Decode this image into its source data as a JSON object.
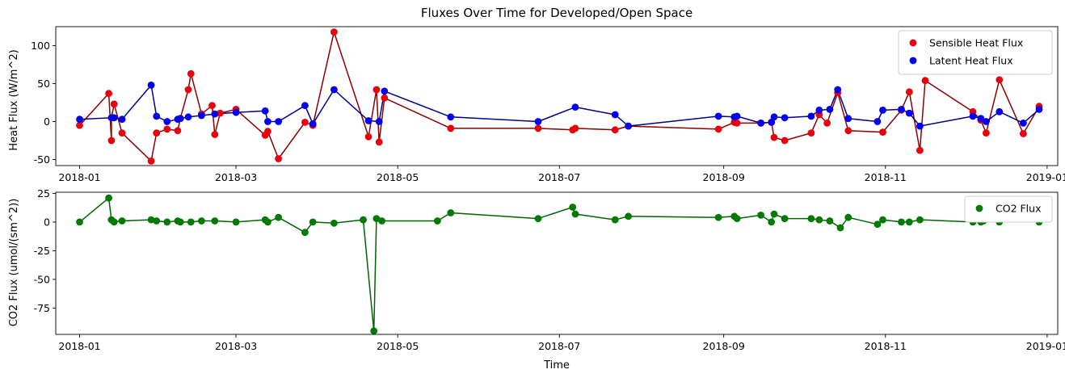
{
  "chart_data": [
    {
      "type": "scatter",
      "title": "Fluxes Over Time for Developed/Open Space",
      "xlabel": "",
      "ylabel": "Heat Flux (W/m^2)",
      "x_type": "date",
      "xlim": [
        "2017-12-23",
        "2019-01-05"
      ],
      "ylim": [
        -58,
        125
      ],
      "xticks": [
        "2018-01",
        "2018-03",
        "2018-05",
        "2018-07",
        "2018-09",
        "2018-11",
        "2019-01"
      ],
      "yticks": [
        -50,
        0,
        50,
        100
      ],
      "grid": false,
      "legend": "top-right",
      "series": [
        {
          "name": "Sensible Heat Flux",
          "marker_color": "#e8000b",
          "line_color": "#8b0000",
          "points": [
            {
              "x": "2018-01-01",
              "y": -5
            },
            {
              "x": "2018-01-12",
              "y": 37
            },
            {
              "x": "2018-01-13",
              "y": -25
            },
            {
              "x": "2018-01-13",
              "y": 5
            },
            {
              "x": "2018-01-14",
              "y": 23
            },
            {
              "x": "2018-01-17",
              "y": -15
            },
            {
              "x": "2018-01-28",
              "y": -52
            },
            {
              "x": "2018-01-30",
              "y": -15
            },
            {
              "x": "2018-02-03",
              "y": -10
            },
            {
              "x": "2018-02-07",
              "y": -12
            },
            {
              "x": "2018-02-08",
              "y": 4
            },
            {
              "x": "2018-02-11",
              "y": 42
            },
            {
              "x": "2018-02-12",
              "y": 63
            },
            {
              "x": "2018-02-16",
              "y": 10
            },
            {
              "x": "2018-02-20",
              "y": 21
            },
            {
              "x": "2018-02-21",
              "y": -17
            },
            {
              "x": "2018-02-23",
              "y": 11
            },
            {
              "x": "2018-03-01",
              "y": 16
            },
            {
              "x": "2018-03-12",
              "y": -18
            },
            {
              "x": "2018-03-13",
              "y": -13
            },
            {
              "x": "2018-03-17",
              "y": -49
            },
            {
              "x": "2018-03-27",
              "y": -1
            },
            {
              "x": "2018-03-30",
              "y": -5
            },
            {
              "x": "2018-04-07",
              "y": 118
            },
            {
              "x": "2018-04-20",
              "y": -20
            },
            {
              "x": "2018-04-23",
              "y": 42
            },
            {
              "x": "2018-04-24",
              "y": -27
            },
            {
              "x": "2018-04-26",
              "y": 31
            },
            {
              "x": "2018-05-21",
              "y": -9
            },
            {
              "x": "2018-06-23",
              "y": -9
            },
            {
              "x": "2018-07-06",
              "y": -11
            },
            {
              "x": "2018-07-07",
              "y": -9
            },
            {
              "x": "2018-07-22",
              "y": -11
            },
            {
              "x": "2018-07-27",
              "y": -6
            },
            {
              "x": "2018-08-30",
              "y": -10
            },
            {
              "x": "2018-09-05",
              "y": -1
            },
            {
              "x": "2018-09-06",
              "y": -2
            },
            {
              "x": "2018-09-15",
              "y": -2
            },
            {
              "x": "2018-09-19",
              "y": -1
            },
            {
              "x": "2018-09-20",
              "y": -21
            },
            {
              "x": "2018-09-24",
              "y": -25
            },
            {
              "x": "2018-10-04",
              "y": -15
            },
            {
              "x": "2018-10-07",
              "y": 9
            },
            {
              "x": "2018-10-10",
              "y": -2
            },
            {
              "x": "2018-10-14",
              "y": 38
            },
            {
              "x": "2018-10-18",
              "y": -12
            },
            {
              "x": "2018-10-31",
              "y": -14
            },
            {
              "x": "2018-11-07",
              "y": 15
            },
            {
              "x": "2018-11-10",
              "y": 39
            },
            {
              "x": "2018-11-14",
              "y": -38
            },
            {
              "x": "2018-11-16",
              "y": 54
            },
            {
              "x": "2018-12-04",
              "y": 13
            },
            {
              "x": "2018-12-07",
              "y": 2
            },
            {
              "x": "2018-12-09",
              "y": -15
            },
            {
              "x": "2018-12-14",
              "y": 55
            },
            {
              "x": "2018-12-23",
              "y": -16
            },
            {
              "x": "2018-12-29",
              "y": 20
            }
          ]
        },
        {
          "name": "Latent Heat Flux",
          "marker_color": "#0000ee",
          "line_color": "#00008b",
          "points": [
            {
              "x": "2018-01-01",
              "y": 3
            },
            {
              "x": "2018-01-13",
              "y": 5
            },
            {
              "x": "2018-01-14",
              "y": 5
            },
            {
              "x": "2018-01-17",
              "y": 3
            },
            {
              "x": "2018-01-28",
              "y": 48
            },
            {
              "x": "2018-01-30",
              "y": 7
            },
            {
              "x": "2018-02-03",
              "y": 0
            },
            {
              "x": "2018-02-07",
              "y": 3
            },
            {
              "x": "2018-02-08",
              "y": 4
            },
            {
              "x": "2018-02-11",
              "y": 6
            },
            {
              "x": "2018-02-16",
              "y": 8
            },
            {
              "x": "2018-02-21",
              "y": 10
            },
            {
              "x": "2018-03-01",
              "y": 12
            },
            {
              "x": "2018-03-12",
              "y": 14
            },
            {
              "x": "2018-03-13",
              "y": 0
            },
            {
              "x": "2018-03-17",
              "y": 0
            },
            {
              "x": "2018-03-27",
              "y": 21
            },
            {
              "x": "2018-03-30",
              "y": -3
            },
            {
              "x": "2018-04-07",
              "y": 42
            },
            {
              "x": "2018-04-20",
              "y": 1
            },
            {
              "x": "2018-04-24",
              "y": 0
            },
            {
              "x": "2018-04-26",
              "y": 40
            },
            {
              "x": "2018-05-21",
              "y": 6
            },
            {
              "x": "2018-06-23",
              "y": 0
            },
            {
              "x": "2018-07-07",
              "y": 19
            },
            {
              "x": "2018-07-22",
              "y": 9
            },
            {
              "x": "2018-07-27",
              "y": -6
            },
            {
              "x": "2018-08-30",
              "y": 7
            },
            {
              "x": "2018-09-05",
              "y": 6
            },
            {
              "x": "2018-09-06",
              "y": 7
            },
            {
              "x": "2018-09-15",
              "y": -2
            },
            {
              "x": "2018-09-19",
              "y": -1
            },
            {
              "x": "2018-09-20",
              "y": 6
            },
            {
              "x": "2018-09-24",
              "y": 5
            },
            {
              "x": "2018-10-04",
              "y": 7
            },
            {
              "x": "2018-10-07",
              "y": 15
            },
            {
              "x": "2018-10-11",
              "y": 16
            },
            {
              "x": "2018-10-14",
              "y": 42
            },
            {
              "x": "2018-10-18",
              "y": 4
            },
            {
              "x": "2018-10-29",
              "y": 0
            },
            {
              "x": "2018-10-31",
              "y": 15
            },
            {
              "x": "2018-11-07",
              "y": 16
            },
            {
              "x": "2018-11-10",
              "y": 11
            },
            {
              "x": "2018-11-14",
              "y": -6
            },
            {
              "x": "2018-12-04",
              "y": 7
            },
            {
              "x": "2018-12-07",
              "y": 4
            },
            {
              "x": "2018-12-09",
              "y": 0
            },
            {
              "x": "2018-12-14",
              "y": 13
            },
            {
              "x": "2018-12-23",
              "y": -2
            },
            {
              "x": "2018-12-29",
              "y": 16
            }
          ]
        }
      ]
    },
    {
      "type": "scatter",
      "title": "",
      "xlabel": "Time",
      "ylabel": "CO2 Flux (umol/(sm^2))",
      "x_type": "date",
      "xlim": [
        "2017-12-23",
        "2019-01-05"
      ],
      "ylim": [
        -98,
        26
      ],
      "xticks": [
        "2018-01",
        "2018-03",
        "2018-05",
        "2018-07",
        "2018-09",
        "2018-11",
        "2019-01"
      ],
      "yticks": [
        -75,
        -50,
        -25,
        0,
        25
      ],
      "grid": false,
      "legend": "top-right",
      "series": [
        {
          "name": "CO2 Flux",
          "marker_color": "#007a00",
          "line_color": "#006400",
          "points": [
            {
              "x": "2018-01-01",
              "y": 0
            },
            {
              "x": "2018-01-12",
              "y": 21
            },
            {
              "x": "2018-01-13",
              "y": 2
            },
            {
              "x": "2018-01-14",
              "y": 0
            },
            {
              "x": "2018-01-17",
              "y": 1
            },
            {
              "x": "2018-01-28",
              "y": 2
            },
            {
              "x": "2018-01-30",
              "y": 1
            },
            {
              "x": "2018-02-03",
              "y": 0
            },
            {
              "x": "2018-02-07",
              "y": 1
            },
            {
              "x": "2018-02-08",
              "y": 0
            },
            {
              "x": "2018-02-12",
              "y": 0
            },
            {
              "x": "2018-02-16",
              "y": 1
            },
            {
              "x": "2018-02-21",
              "y": 1
            },
            {
              "x": "2018-03-01",
              "y": 0
            },
            {
              "x": "2018-03-12",
              "y": 2
            },
            {
              "x": "2018-03-13",
              "y": 0
            },
            {
              "x": "2018-03-17",
              "y": 4
            },
            {
              "x": "2018-03-27",
              "y": -9
            },
            {
              "x": "2018-03-30",
              "y": 0
            },
            {
              "x": "2018-04-07",
              "y": -1
            },
            {
              "x": "2018-04-18",
              "y": 2
            },
            {
              "x": "2018-04-22",
              "y": -95
            },
            {
              "x": "2018-04-23",
              "y": 3
            },
            {
              "x": "2018-04-25",
              "y": 1
            },
            {
              "x": "2018-05-16",
              "y": 1
            },
            {
              "x": "2018-05-21",
              "y": 8
            },
            {
              "x": "2018-06-23",
              "y": 3
            },
            {
              "x": "2018-07-06",
              "y": 13
            },
            {
              "x": "2018-07-07",
              "y": 7
            },
            {
              "x": "2018-07-22",
              "y": 2
            },
            {
              "x": "2018-07-27",
              "y": 5
            },
            {
              "x": "2018-08-30",
              "y": 4
            },
            {
              "x": "2018-09-05",
              "y": 5
            },
            {
              "x": "2018-09-06",
              "y": 3
            },
            {
              "x": "2018-09-15",
              "y": 6
            },
            {
              "x": "2018-09-19",
              "y": 0
            },
            {
              "x": "2018-09-20",
              "y": 7
            },
            {
              "x": "2018-09-24",
              "y": 3
            },
            {
              "x": "2018-10-04",
              "y": 3
            },
            {
              "x": "2018-10-07",
              "y": 2
            },
            {
              "x": "2018-10-11",
              "y": 1
            },
            {
              "x": "2018-10-15",
              "y": -5
            },
            {
              "x": "2018-10-18",
              "y": 4
            },
            {
              "x": "2018-10-29",
              "y": -2
            },
            {
              "x": "2018-10-31",
              "y": 2
            },
            {
              "x": "2018-11-07",
              "y": 0
            },
            {
              "x": "2018-11-10",
              "y": 0
            },
            {
              "x": "2018-11-14",
              "y": 2
            },
            {
              "x": "2018-12-04",
              "y": 0
            },
            {
              "x": "2018-12-07",
              "y": 0
            },
            {
              "x": "2018-12-08",
              "y": 1
            },
            {
              "x": "2018-12-14",
              "y": 0
            },
            {
              "x": "2018-12-23",
              "y": 3
            },
            {
              "x": "2018-12-29",
              "y": 0
            }
          ]
        }
      ]
    }
  ]
}
